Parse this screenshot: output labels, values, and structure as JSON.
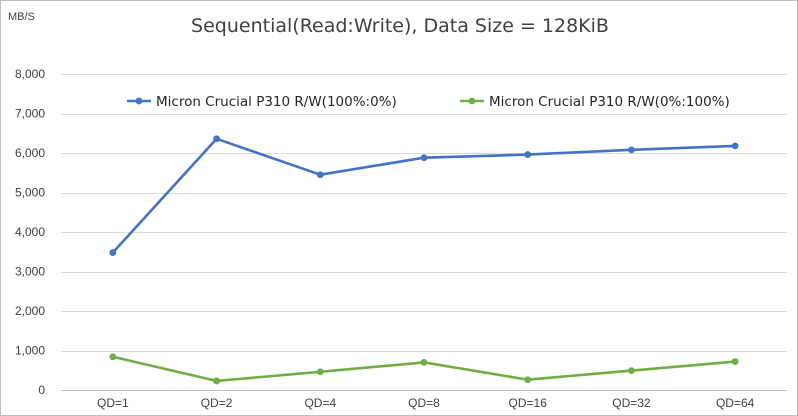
{
  "chart_data": {
    "type": "line",
    "title": "Sequential(Read:Write),  Data Size = 128KiB",
    "ylabel": "MB/S",
    "xlabel": "",
    "categories": [
      "QD=1",
      "QD=2",
      "QD=4",
      "QD=8",
      "QD=16",
      "QD=32",
      "QD=64"
    ],
    "ylim": [
      0,
      8000
    ],
    "yticks": [
      0,
      1000,
      2000,
      3000,
      4000,
      5000,
      6000,
      7000,
      8000
    ],
    "ytick_labels": [
      "0",
      "1,000",
      "2,000",
      "3,000",
      "4,000",
      "5,000",
      "6,000",
      "7,000",
      "8,000"
    ],
    "grid": true,
    "legend_position": "top",
    "series": [
      {
        "name": "Micron Crucial P310 R/W(100%:0%)",
        "color": "#4472c4",
        "values": [
          3480,
          6360,
          5450,
          5880,
          5960,
          6080,
          6180
        ]
      },
      {
        "name": "Micron Crucial P310 R/W(0%:100%)",
        "color": "#70ad47",
        "values": [
          840,
          230,
          460,
          700,
          260,
          490,
          720
        ]
      }
    ]
  }
}
